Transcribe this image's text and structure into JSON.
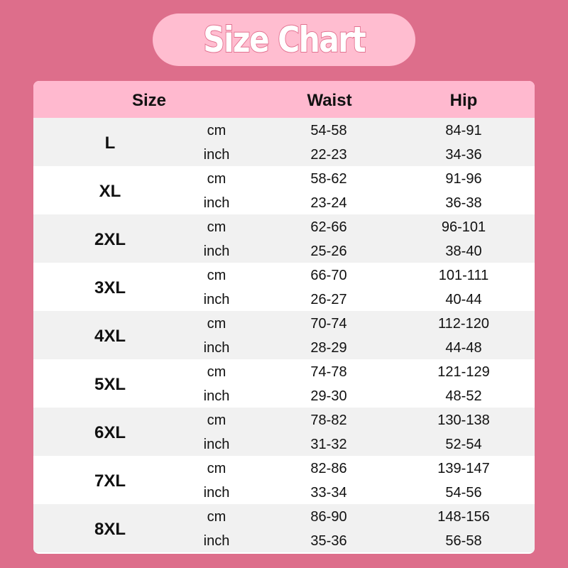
{
  "title": "Size Chart",
  "headers": {
    "size": "Size",
    "waist": "Waist",
    "hip": "Hip"
  },
  "units": {
    "cm": "cm",
    "inch": "inch"
  },
  "rows": [
    {
      "size": "L",
      "cm": {
        "waist": "54-58",
        "hip": "84-91"
      },
      "inch": {
        "waist": "22-23",
        "hip": "34-36"
      }
    },
    {
      "size": "XL",
      "cm": {
        "waist": "58-62",
        "hip": "91-96"
      },
      "inch": {
        "waist": "23-24",
        "hip": "36-38"
      }
    },
    {
      "size": "2XL",
      "cm": {
        "waist": "62-66",
        "hip": "96-101"
      },
      "inch": {
        "waist": "25-26",
        "hip": "38-40"
      }
    },
    {
      "size": "3XL",
      "cm": {
        "waist": "66-70",
        "hip": "101-111"
      },
      "inch": {
        "waist": "26-27",
        "hip": "40-44"
      }
    },
    {
      "size": "4XL",
      "cm": {
        "waist": "70-74",
        "hip": "112-120"
      },
      "inch": {
        "waist": "28-29",
        "hip": "44-48"
      }
    },
    {
      "size": "5XL",
      "cm": {
        "waist": "74-78",
        "hip": "121-129"
      },
      "inch": {
        "waist": "29-30",
        "hip": "48-52"
      }
    },
    {
      "size": "6XL",
      "cm": {
        "waist": "78-82",
        "hip": "130-138"
      },
      "inch": {
        "waist": "31-32",
        "hip": "52-54"
      }
    },
    {
      "size": "7XL",
      "cm": {
        "waist": "82-86",
        "hip": "139-147"
      },
      "inch": {
        "waist": "33-34",
        "hip": "54-56"
      }
    },
    {
      "size": "8XL",
      "cm": {
        "waist": "86-90",
        "hip": "148-156"
      },
      "inch": {
        "waist": "35-36",
        "hip": "56-58"
      }
    }
  ],
  "colors": {
    "background": "#dd6e8b",
    "pill": "#ffbdd0",
    "header": "#ffb9cf",
    "row_alt": "#f1f1f1"
  }
}
